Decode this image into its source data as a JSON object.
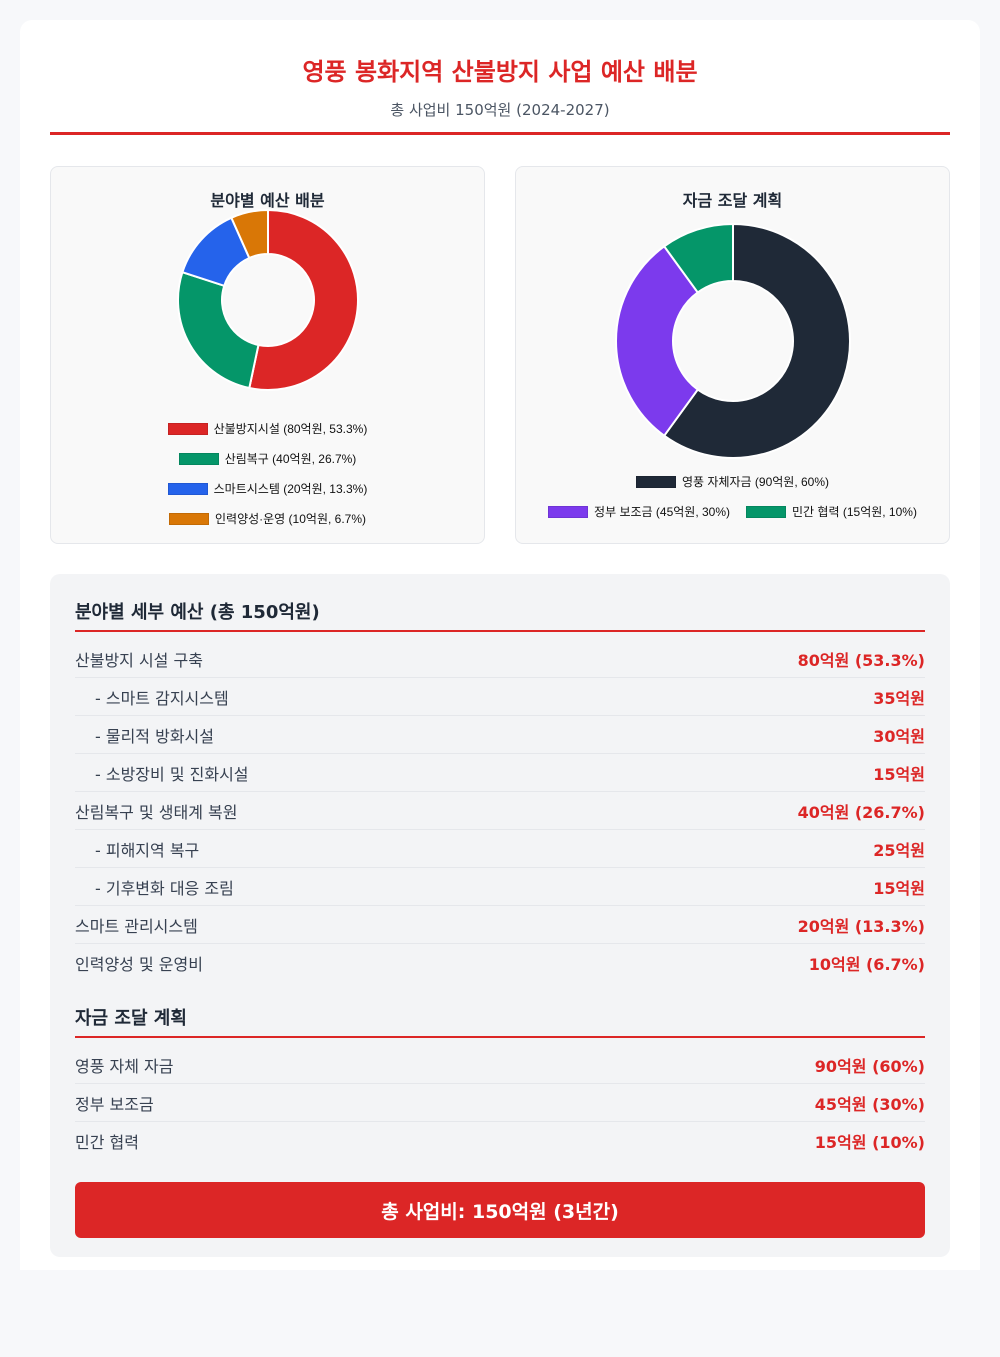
{
  "header": {
    "title": "영풍 봉화지역 산불방지 사업 예산 배분",
    "subtitle": "총 사업비 150억원 (2024-2027)"
  },
  "chart_data": [
    {
      "type": "pie",
      "title": "분야별 예산 배분",
      "categories": [
        "산불방지시설 (80억원, 53.3%)",
        "산림복구 (40억원, 26.7%)",
        "스마트시스템 (20억원, 13.3%)",
        "인력양성·운영 (10억원, 6.7%)"
      ],
      "values": [
        80,
        40,
        20,
        10
      ],
      "colors": [
        "#dc2626",
        "#059669",
        "#2563eb",
        "#d97706"
      ]
    },
    {
      "type": "pie",
      "title": "자금 조달 계획",
      "categories": [
        "영풍 자체자금 (90억원, 60%)",
        "정부 보조금 (45억원, 30%)",
        "민간 협력 (15억원, 10%)"
      ],
      "values": [
        90,
        45,
        15
      ],
      "colors": [
        "#1f2937",
        "#7c3aed",
        "#059669"
      ]
    }
  ],
  "details": {
    "title": "분야별 세부 예산 (총 150억원)",
    "rows": [
      {
        "label": "산불방지 시설 구축",
        "amount": "80억원 (53.3%)",
        "sub": false
      },
      {
        "label": "- 스마트 감지시스템",
        "amount": "35억원",
        "sub": true
      },
      {
        "label": "- 물리적 방화시설",
        "amount": "30억원",
        "sub": true
      },
      {
        "label": "- 소방장비 및 진화시설",
        "amount": "15억원",
        "sub": true
      },
      {
        "label": "산림복구 및 생태계 복원",
        "amount": "40억원 (26.7%)",
        "sub": false
      },
      {
        "label": "- 피해지역 복구",
        "amount": "25억원",
        "sub": true
      },
      {
        "label": "- 기후변화 대응 조림",
        "amount": "15억원",
        "sub": true
      },
      {
        "label": "스마트 관리시스템",
        "amount": "20억원 (13.3%)",
        "sub": false
      },
      {
        "label": "인력양성 및 운영비",
        "amount": "10억원 (6.7%)",
        "sub": false
      }
    ]
  },
  "funding": {
    "title": "자금 조달 계획",
    "rows": [
      {
        "label": "영풍 자체 자금",
        "amount": "90억원 (60%)"
      },
      {
        "label": "정부 보조금",
        "amount": "45억원 (30%)"
      },
      {
        "label": "민간 협력",
        "amount": "15억원 (10%)"
      }
    ]
  },
  "total": "총 사업비: 150억원 (3년간)"
}
